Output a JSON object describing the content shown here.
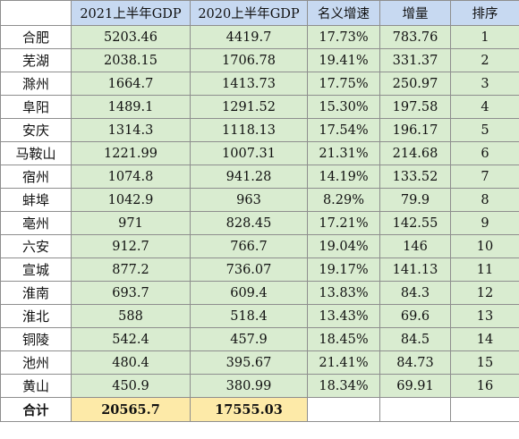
{
  "headers": [
    "",
    "2021上半年GDP",
    "2020上半年GDP",
    "名义增速",
    "增量",
    "排序"
  ],
  "rows": [
    [
      "合肥",
      "5203.46",
      "4419.7",
      "17.73%",
      "783.76",
      "1"
    ],
    [
      "芜湖",
      "2038.15",
      "1706.78",
      "19.41%",
      "331.37",
      "2"
    ],
    [
      "滁州",
      "1664.7",
      "1413.73",
      "17.75%",
      "250.97",
      "3"
    ],
    [
      "阜阳",
      "1489.1",
      "1291.52",
      "15.30%",
      "197.58",
      "4"
    ],
    [
      "安庆",
      "1314.3",
      "1118.13",
      "17.54%",
      "196.17",
      "5"
    ],
    [
      "马鞍山",
      "1221.99",
      "1007.31",
      "21.31%",
      "214.68",
      "6"
    ],
    [
      "宿州",
      "1074.8",
      "941.28",
      "14.19%",
      "133.52",
      "7"
    ],
    [
      "蚌埠",
      "1042.9",
      "963",
      "8.29%",
      "79.9",
      "8"
    ],
    [
      "亳州",
      "971",
      "828.45",
      "17.21%",
      "142.55",
      "9"
    ],
    [
      "六安",
      "912.7",
      "766.7",
      "19.04%",
      "146",
      "10"
    ],
    [
      "宣城",
      "877.2",
      "736.07",
      "19.17%",
      "141.13",
      "11"
    ],
    [
      "淮南",
      "693.7",
      "609.4",
      "13.83%",
      "84.3",
      "12"
    ],
    [
      "淮北",
      "588",
      "518.4",
      "13.43%",
      "69.6",
      "13"
    ],
    [
      "铜陵",
      "542.4",
      "457.9",
      "18.45%",
      "84.5",
      "14"
    ],
    [
      "池州",
      "480.4",
      "395.67",
      "21.41%",
      "84.73",
      "15"
    ],
    [
      "黄山",
      "450.9",
      "380.99",
      "18.34%",
      "69.91",
      "16"
    ]
  ],
  "total": [
    "合计",
    "20565.7",
    "17555.03",
    "",
    "",
    ""
  ],
  "colors": {
    "header_bg": "#c7d9f1",
    "cell_bg": "#d9ecd0",
    "total_bg": "#fdeaa8",
    "border": "#8e8e8e"
  }
}
